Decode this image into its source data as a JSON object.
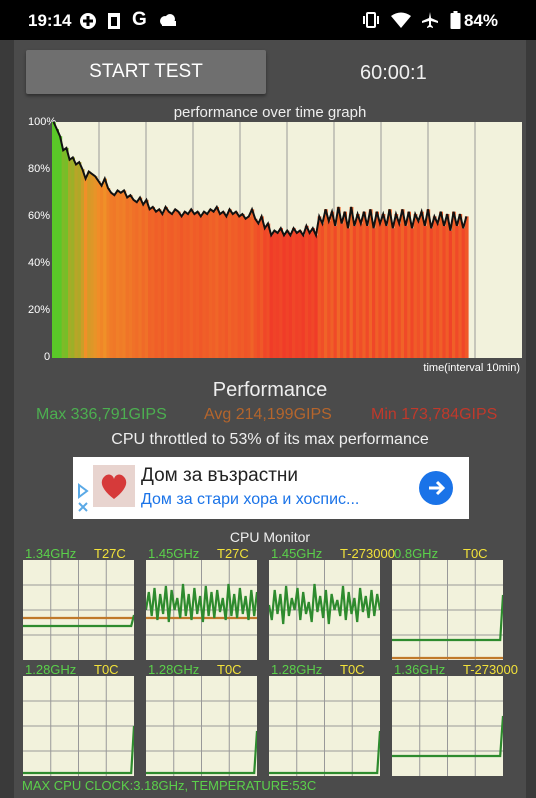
{
  "status_bar": {
    "time": "19:14",
    "battery_percent": "84%",
    "icons_left": [
      "game-controller-icon",
      "phone-doc-icon",
      "google-icon",
      "cloud-icon"
    ],
    "icons_right": [
      "vibrate-icon",
      "wifi-icon",
      "airplane-icon",
      "battery-icon"
    ]
  },
  "controls": {
    "start_label": "START TEST",
    "timer": "60:00:1"
  },
  "graph": {
    "title": "performance over time graph",
    "xlabel": "time(interval 10min)",
    "y_ticks": [
      "100%",
      "80%",
      "60%",
      "40%",
      "20%",
      "0"
    ]
  },
  "chart_data": {
    "type": "area",
    "title": "performance over time graph",
    "xlabel": "time(interval 10min)",
    "ylabel": "",
    "ylim": [
      0,
      100
    ],
    "x_divisions": 10,
    "grid": true,
    "series": [
      {
        "values": [
          100,
          97,
          94,
          88,
          89,
          84,
          85,
          82,
          83,
          80,
          76,
          79,
          78,
          77,
          75,
          73,
          76,
          72,
          70,
          69,
          71,
          70,
          71,
          68,
          69,
          67,
          66,
          68,
          65,
          67,
          63,
          64,
          62,
          63,
          61,
          64,
          62,
          61,
          63,
          62,
          60,
          62,
          61,
          63,
          61,
          62,
          60,
          62,
          61,
          63,
          62,
          64,
          61,
          62,
          60,
          63,
          61,
          62,
          60,
          61,
          59,
          60,
          63,
          59,
          57,
          60,
          55,
          57,
          52,
          54,
          53,
          55,
          52,
          54,
          52,
          55,
          53,
          54,
          52,
          56,
          53,
          55,
          52,
          60,
          57,
          63,
          58,
          62,
          56,
          64,
          57,
          62,
          55,
          64,
          56,
          61,
          57,
          62,
          56,
          63,
          55,
          62,
          57,
          61,
          56,
          63,
          55,
          61,
          57,
          63,
          56,
          62,
          55,
          61,
          58,
          62,
          56,
          63,
          55,
          60,
          57,
          62,
          56,
          61,
          54,
          62,
          56,
          61,
          55,
          60
        ]
      }
    ]
  },
  "performance": {
    "title": "Performance",
    "max": "Max 336,791GIPS",
    "avg": "Avg 214,199GIPS",
    "min": "Min 173,784GIPS",
    "throttle": "CPU throttled to 53% of its max performance"
  },
  "ad": {
    "title": "Дом за възрастни",
    "subtitle": "Дом за стари хора и хоспис..."
  },
  "cpu_monitor": {
    "title": "CPU Monitor",
    "cores": [
      {
        "freq": "1.34GHz",
        "temp": "T27C",
        "freq_trace": [
          34,
          34,
          34,
          34,
          34,
          34,
          34,
          34,
          34,
          34,
          34,
          34,
          34,
          34,
          34,
          34,
          34,
          34,
          34,
          34,
          34,
          34,
          34,
          34,
          34,
          34,
          34,
          34,
          34,
          34,
          34,
          34,
          34,
          34,
          34,
          34,
          34,
          34,
          34,
          45
        ],
        "temp_trace": [
          42,
          42,
          42,
          42,
          42,
          42,
          42,
          42,
          42,
          42,
          42,
          42,
          42,
          42,
          42,
          42,
          42,
          42,
          42,
          42,
          42,
          42,
          42,
          42,
          42,
          42,
          42,
          42,
          42,
          42,
          42,
          42,
          42,
          42,
          42,
          42,
          42,
          42,
          42,
          42
        ]
      },
      {
        "freq": "1.45GHz",
        "temp": "T27C",
        "freq_trace": [
          50,
          68,
          44,
          72,
          40,
          66,
          46,
          74,
          38,
          70,
          50,
          62,
          42,
          76,
          44,
          66,
          40,
          72,
          46,
          64,
          38,
          74,
          44,
          68,
          42,
          70,
          48,
          62,
          40,
          76,
          44,
          66,
          42,
          72,
          46,
          64,
          40,
          70,
          44,
          68
        ],
        "temp_trace": [
          42,
          42,
          42,
          42,
          42,
          42,
          42,
          42,
          42,
          42,
          42,
          42,
          42,
          42,
          42,
          42,
          42,
          42,
          42,
          42,
          42,
          42,
          42,
          42,
          42,
          42,
          42,
          42,
          42,
          42,
          42,
          42,
          42,
          42,
          42,
          42,
          42,
          42,
          42,
          42
        ]
      },
      {
        "freq": "1.45GHz",
        "temp": "T-273000",
        "freq_trace": [
          55,
          40,
          70,
          46,
          66,
          36,
          74,
          44,
          62,
          50,
          72,
          40,
          68,
          46,
          58,
          38,
          76,
          48,
          64,
          42,
          70,
          36,
          66,
          50,
          60,
          44,
          74,
          40,
          68,
          46,
          62,
          38,
          72,
          48,
          64,
          42,
          70,
          44,
          66,
          50
        ],
        "temp_trace": []
      },
      {
        "freq": "0.8GHz",
        "temp": "T0C",
        "freq_trace": [
          20,
          20,
          20,
          20,
          20,
          20,
          20,
          20,
          20,
          20,
          20,
          20,
          20,
          20,
          20,
          20,
          20,
          20,
          20,
          20,
          20,
          20,
          20,
          20,
          20,
          20,
          20,
          20,
          20,
          20,
          20,
          20,
          20,
          20,
          20,
          20,
          20,
          20,
          20,
          65
        ],
        "temp_trace": [
          2,
          2,
          2,
          2,
          2,
          2,
          2,
          2,
          2,
          2,
          2,
          2,
          2,
          2,
          2,
          2,
          2,
          2,
          2,
          2,
          2,
          2,
          2,
          2,
          2,
          2,
          2,
          2,
          2,
          2,
          2,
          2,
          2,
          2,
          2,
          2,
          2,
          2,
          2,
          2
        ]
      },
      {
        "freq": "1.28GHz",
        "temp": "T0C",
        "freq_trace": [
          3,
          3,
          3,
          3,
          3,
          3,
          3,
          3,
          3,
          3,
          3,
          3,
          3,
          3,
          3,
          3,
          3,
          3,
          3,
          3,
          3,
          3,
          3,
          3,
          3,
          3,
          3,
          3,
          3,
          3,
          3,
          3,
          3,
          3,
          3,
          3,
          3,
          3,
          3,
          50
        ],
        "temp_trace": []
      },
      {
        "freq": "1.28GHz",
        "temp": "T0C",
        "freq_trace": [
          3,
          3,
          3,
          3,
          3,
          3,
          3,
          3,
          3,
          3,
          3,
          3,
          3,
          3,
          3,
          3,
          3,
          3,
          3,
          3,
          3,
          3,
          3,
          3,
          3,
          3,
          3,
          3,
          3,
          3,
          3,
          3,
          3,
          3,
          3,
          3,
          3,
          3,
          3,
          45
        ],
        "temp_trace": []
      },
      {
        "freq": "1.28GHz",
        "temp": "T0C",
        "freq_trace": [
          3,
          3,
          3,
          3,
          3,
          3,
          3,
          3,
          3,
          3,
          3,
          3,
          3,
          3,
          3,
          3,
          3,
          3,
          3,
          3,
          3,
          3,
          3,
          3,
          3,
          3,
          3,
          3,
          3,
          3,
          3,
          3,
          3,
          3,
          3,
          3,
          3,
          3,
          3,
          45
        ],
        "temp_trace": []
      },
      {
        "freq": "1.36GHz",
        "temp": "T-273000",
        "freq_trace": [
          20,
          20,
          20,
          20,
          20,
          20,
          20,
          20,
          20,
          20,
          20,
          20,
          20,
          20,
          20,
          20,
          20,
          20,
          20,
          20,
          20,
          20,
          20,
          20,
          20,
          20,
          20,
          20,
          20,
          20,
          20,
          20,
          20,
          20,
          20,
          20,
          20,
          20,
          20,
          60
        ],
        "temp_trace": []
      }
    ],
    "max_clock": "MAX CPU CLOCK:3.18GHz, TEMPERATURE:53C"
  }
}
